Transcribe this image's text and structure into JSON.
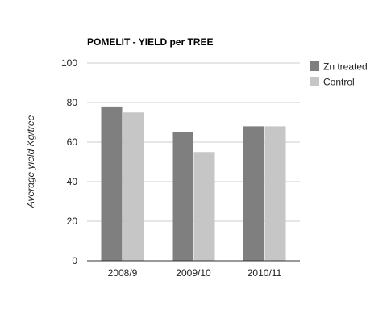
{
  "chart_data": {
    "type": "bar",
    "title": "POMELIT - YIELD per TREE",
    "ylabel": "Average yield Kg/tree",
    "xlabel": "",
    "categories": [
      "2008/9",
      "2009/10",
      "2010/11"
    ],
    "series": [
      {
        "name": "Zn treated",
        "values": [
          78,
          65,
          68
        ],
        "color": "#7f7f7f"
      },
      {
        "name": "Control",
        "values": [
          75,
          55,
          68
        ],
        "color": "#c6c6c6"
      }
    ],
    "ylim": [
      0,
      100
    ],
    "yticks": [
      0,
      20,
      40,
      60,
      80,
      100
    ],
    "grid": true,
    "legend_position": "right"
  }
}
